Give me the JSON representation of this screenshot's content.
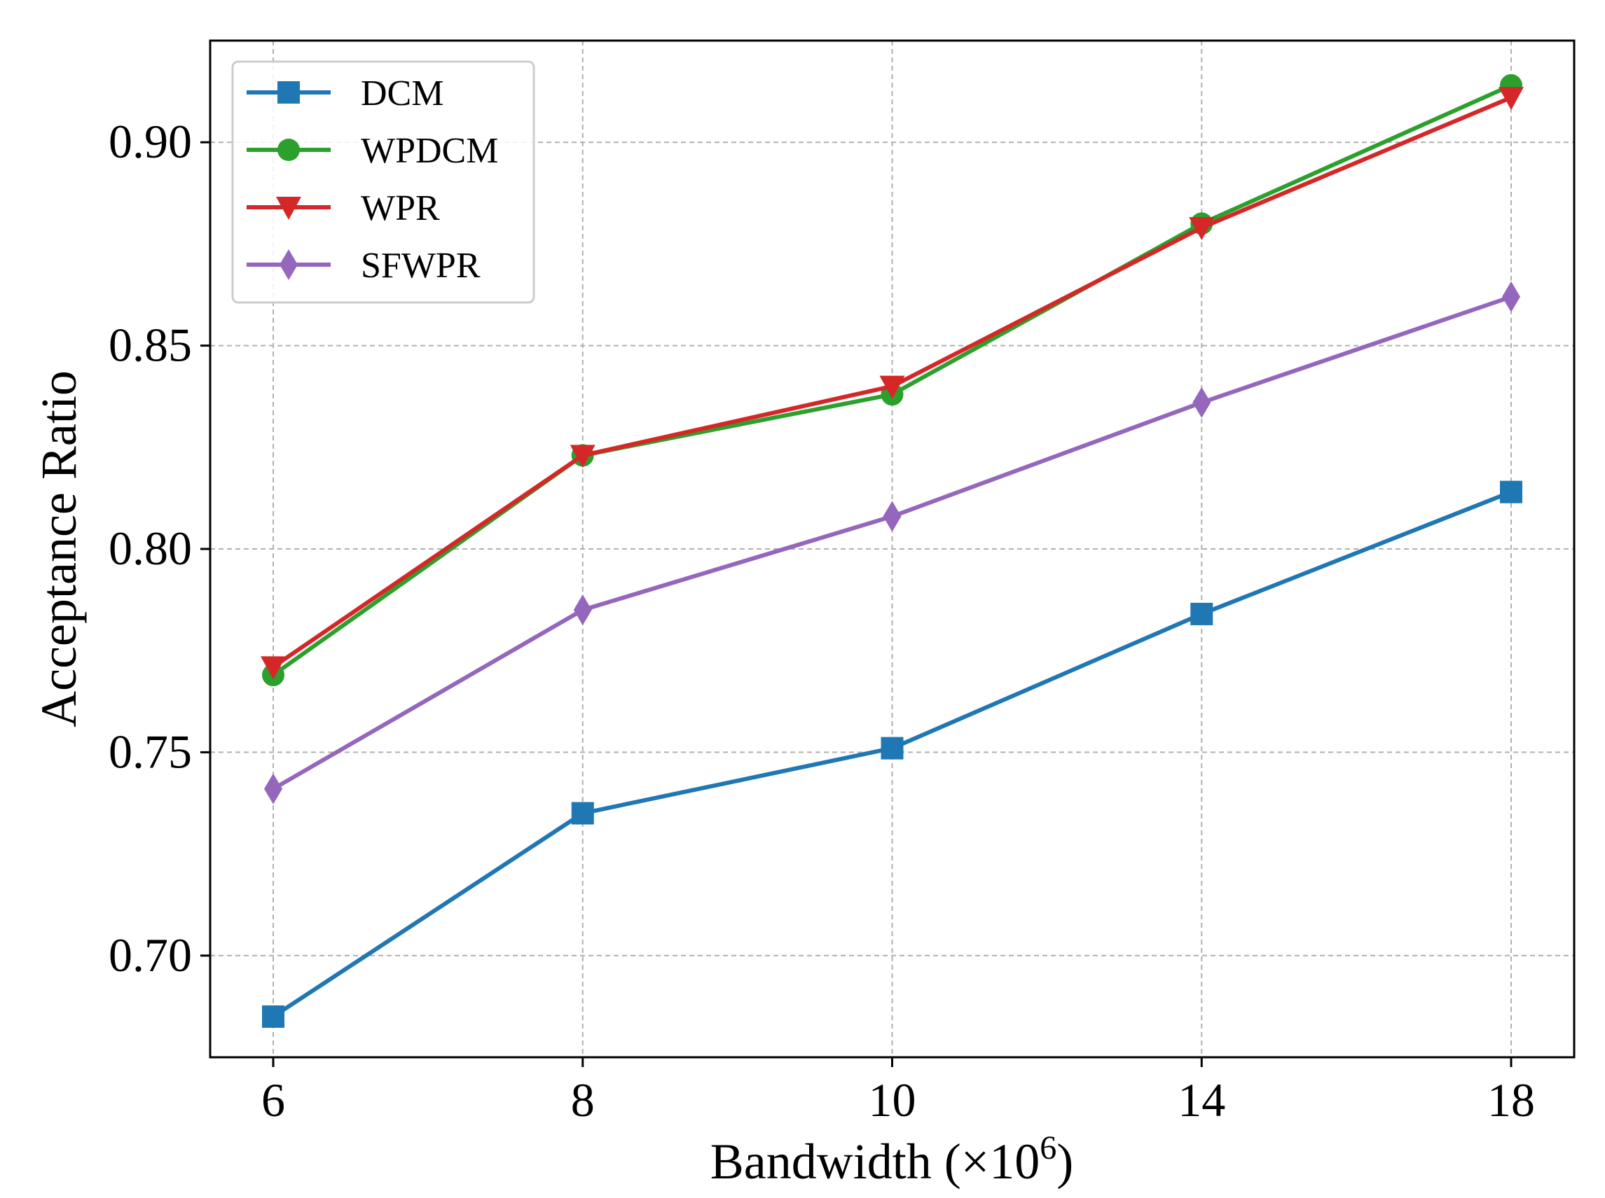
{
  "chart_data": {
    "type": "line",
    "title": "",
    "xlabel": "Bandwidth (×10",
    "xlabel_superscript": "6",
    "xlabel_close": ")",
    "ylabel": "Acceptance Ratio",
    "categories": [
      "6",
      "8",
      "10",
      "14",
      "18"
    ],
    "ylim": [
      0.675,
      0.925
    ],
    "yticks": [
      0.7,
      0.75,
      0.8,
      0.85,
      0.9
    ],
    "ytick_labels": [
      "0.70",
      "0.75",
      "0.80",
      "0.85",
      "0.90"
    ],
    "grid": true,
    "legend_position": "top-left",
    "series": [
      {
        "name": "DCM",
        "color": "#1f77b4",
        "marker": "square",
        "values": [
          0.685,
          0.735,
          0.751,
          0.784,
          0.814
        ]
      },
      {
        "name": "WPDCM",
        "color": "#2ca02c",
        "marker": "circle",
        "values": [
          0.769,
          0.823,
          0.838,
          0.88,
          0.914
        ]
      },
      {
        "name": "WPR",
        "color": "#d62728",
        "marker": "triangle-down",
        "values": [
          0.771,
          0.823,
          0.84,
          0.879,
          0.911
        ]
      },
      {
        "name": "SFWPR",
        "color": "#9467bd",
        "marker": "diamond",
        "values": [
          0.741,
          0.785,
          0.808,
          0.836,
          0.862
        ]
      }
    ]
  }
}
